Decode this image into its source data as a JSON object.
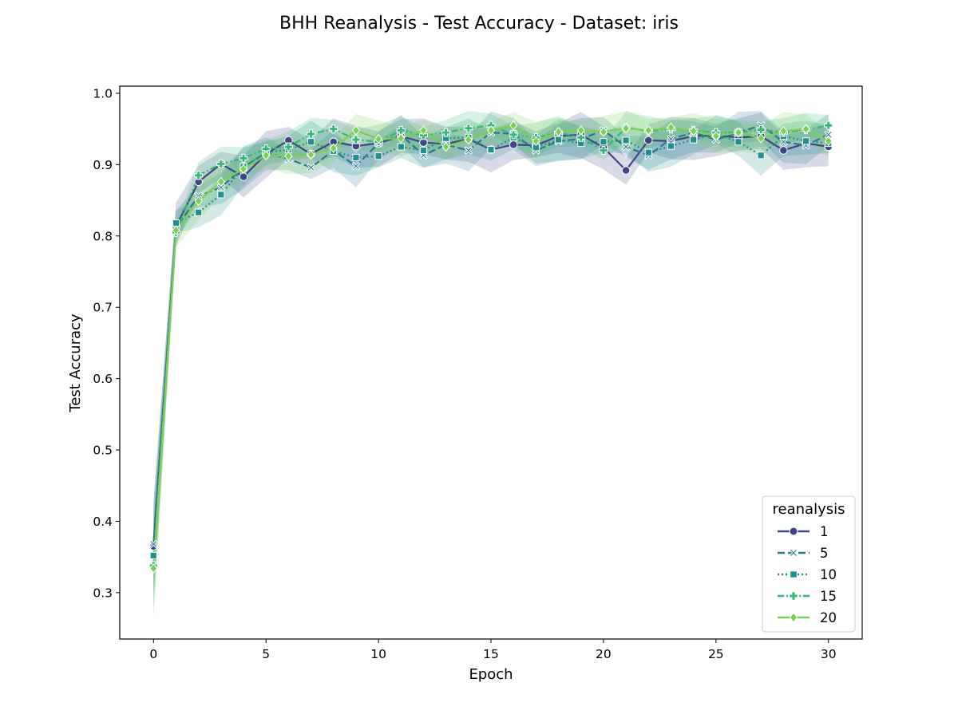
{
  "chart_data": {
    "type": "line",
    "title": "BHH Reanalysis - Test Accuracy - Dataset: iris",
    "xlabel": "Epoch",
    "ylabel": "Test Accuracy",
    "xlim": [
      -1.5,
      31.5
    ],
    "ylim": [
      0.235,
      1.01
    ],
    "x_ticks": [
      0,
      5,
      10,
      15,
      20,
      25,
      30
    ],
    "y_ticks": [
      0.3,
      0.4,
      0.5,
      0.6,
      0.7,
      0.8,
      0.9,
      1.0
    ],
    "y_tick_labels": [
      "0.3",
      "0.4",
      "0.5",
      "0.6",
      "0.7",
      "0.8",
      "0.9",
      "1.0"
    ],
    "grid": false,
    "legend": {
      "title": "reanalysis",
      "placement": "lower-right"
    },
    "x": [
      0,
      1,
      2,
      3,
      4,
      5,
      6,
      7,
      8,
      9,
      10,
      11,
      12,
      13,
      14,
      15,
      16,
      17,
      18,
      19,
      20,
      21,
      22,
      23,
      24,
      25,
      26,
      27,
      28,
      29,
      30
    ],
    "series": [
      {
        "name": "1",
        "color": "#414487",
        "marker": "circle",
        "dash": "solid",
        "band": 0.025,
        "values": [
          0.365,
          0.813,
          0.876,
          0.901,
          0.883,
          0.915,
          0.934,
          0.915,
          0.932,
          0.926,
          0.93,
          0.94,
          0.931,
          0.929,
          0.936,
          0.921,
          0.928,
          0.927,
          0.94,
          0.942,
          0.924,
          0.892,
          0.934,
          0.933,
          0.94,
          0.941,
          0.938,
          0.94,
          0.92,
          0.93,
          0.925
        ]
      },
      {
        "name": "5",
        "color": "#2a788e",
        "marker": "x",
        "dash": "dashed",
        "band": 0.022,
        "values": [
          0.368,
          0.811,
          0.856,
          0.868,
          0.896,
          0.917,
          0.908,
          0.896,
          0.92,
          0.898,
          0.93,
          0.942,
          0.913,
          0.928,
          0.92,
          0.945,
          0.943,
          0.92,
          0.933,
          0.936,
          0.948,
          0.925,
          0.913,
          0.936,
          0.945,
          0.935,
          0.945,
          0.955,
          0.932,
          0.927,
          0.942
        ]
      },
      {
        "name": "10",
        "color": "#21908d",
        "marker": "square",
        "dash": "dotted",
        "band": 0.022,
        "values": [
          0.352,
          0.818,
          0.833,
          0.858,
          0.897,
          0.917,
          0.921,
          0.932,
          0.919,
          0.91,
          0.912,
          0.925,
          0.92,
          0.937,
          0.938,
          0.921,
          0.938,
          0.924,
          0.935,
          0.93,
          0.932,
          0.934,
          0.917,
          0.926,
          0.935,
          0.943,
          0.932,
          0.913,
          0.94,
          0.933,
          0.93
        ]
      },
      {
        "name": "15",
        "color": "#35b779",
        "marker": "plus",
        "dash": "dashdot",
        "band": 0.018,
        "values": [
          0.338,
          0.805,
          0.885,
          0.901,
          0.909,
          0.922,
          0.925,
          0.943,
          0.95,
          0.935,
          0.932,
          0.948,
          0.941,
          0.945,
          0.951,
          0.955,
          0.942,
          0.938,
          0.945,
          0.938,
          0.92,
          0.952,
          0.947,
          0.95,
          0.948,
          0.945,
          0.945,
          0.949,
          0.945,
          0.949,
          0.955
        ]
      },
      {
        "name": "20",
        "color": "#7ad151",
        "marker": "diamond",
        "dash": "solid",
        "band": 0.02,
        "values": [
          0.334,
          0.808,
          0.849,
          0.876,
          0.894,
          0.913,
          0.912,
          0.914,
          0.923,
          0.948,
          0.936,
          0.937,
          0.948,
          0.925,
          0.935,
          0.948,
          0.955,
          0.933,
          0.946,
          0.948,
          0.946,
          0.951,
          0.948,
          0.952,
          0.947,
          0.94,
          0.945,
          0.937,
          0.947,
          0.95,
          0.933
        ]
      }
    ]
  }
}
